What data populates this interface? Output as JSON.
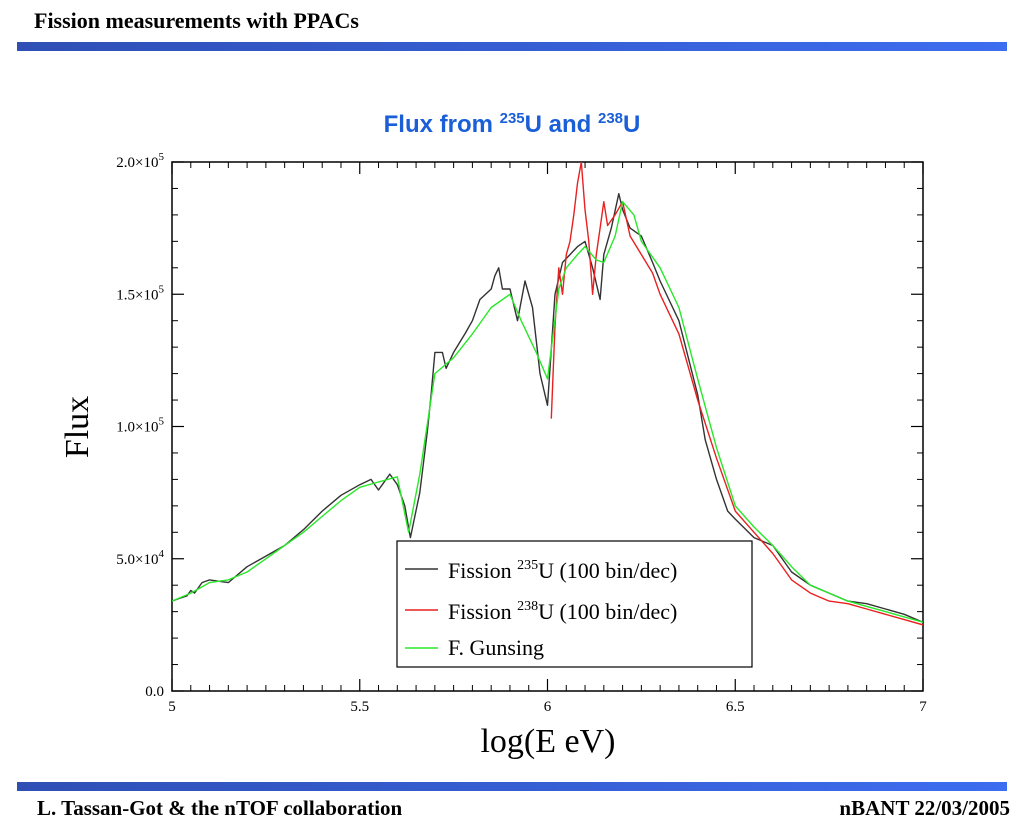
{
  "slide": {
    "title": "Fission measurements with PPACs",
    "footer_left": "L. Tassan-Got & the nTOF collaboration",
    "footer_right": "nBANT 22/03/2005",
    "accent_bar_color": "#3d6df0"
  },
  "chart_data": {
    "type": "line",
    "title_parts": [
      "Flux from ",
      "235",
      "U and ",
      "238",
      "U"
    ],
    "title_color": "#1a5fd8",
    "xlabel": "log(E eV)",
    "ylabel": "Flux",
    "xlim": [
      5,
      7
    ],
    "ylim": [
      0,
      200000
    ],
    "xticks": [
      5,
      5.5,
      6,
      6.5,
      7
    ],
    "xtick_labels": [
      "5",
      "5.5",
      "6",
      "6.5",
      "7"
    ],
    "yticks": [
      0,
      50000,
      100000,
      150000,
      200000
    ],
    "ytick_labels": [
      {
        "mant": "0.0",
        "exp": ""
      },
      {
        "mant": "5.0×10",
        "exp": "4"
      },
      {
        "mant": "1.0×10",
        "exp": "5"
      },
      {
        "mant": "1.5×10",
        "exp": "5"
      },
      {
        "mant": "2.0×10",
        "exp": "5"
      }
    ],
    "grid": false,
    "legend_position": "bottom-center",
    "series": [
      {
        "legend": {
          "prefix": "Fission ",
          "sup": "235",
          "suffix": "U (100 bin/dec)"
        },
        "color": "#333333",
        "x": [
          5.0,
          5.02,
          5.04,
          5.05,
          5.06,
          5.08,
          5.1,
          5.15,
          5.2,
          5.25,
          5.3,
          5.35,
          5.4,
          5.45,
          5.5,
          5.53,
          5.55,
          5.58,
          5.6,
          5.62,
          5.635,
          5.66,
          5.68,
          5.69,
          5.7,
          5.72,
          5.73,
          5.75,
          5.78,
          5.8,
          5.82,
          5.85,
          5.86,
          5.87,
          5.88,
          5.9,
          5.92,
          5.94,
          5.96,
          5.98,
          6.0,
          6.02,
          6.04,
          6.06,
          6.08,
          6.1,
          6.12,
          6.14,
          6.15,
          6.17,
          6.19,
          6.2,
          6.22,
          6.25,
          6.28,
          6.3,
          6.35,
          6.4,
          6.42,
          6.45,
          6.48,
          6.5,
          6.55,
          6.6,
          6.65,
          6.7,
          6.75,
          6.8,
          6.85,
          6.9,
          6.95,
          7.0
        ],
        "y": [
          34000,
          35000,
          36000,
          38000,
          37000,
          41000,
          42000,
          41000,
          47000,
          51000,
          55000,
          61000,
          68000,
          74000,
          78000,
          80000,
          76000,
          82000,
          78000,
          70000,
          58000,
          75000,
          98000,
          112000,
          128000,
          128000,
          122000,
          128000,
          135000,
          140000,
          148000,
          152000,
          157000,
          160000,
          152000,
          152000,
          140000,
          155000,
          145000,
          120000,
          108000,
          150000,
          162000,
          165000,
          168000,
          170000,
          160000,
          148000,
          165000,
          175000,
          188000,
          182000,
          175000,
          172000,
          162000,
          155000,
          140000,
          112000,
          95000,
          80000,
          68000,
          65000,
          58000,
          55000,
          45000,
          40000,
          37000,
          34000,
          33000,
          31000,
          29000,
          26000
        ]
      },
      {
        "legend": {
          "prefix": "Fission ",
          "sup": "238",
          "suffix": "U (100 bin/dec)"
        },
        "color": "#e82020",
        "x": [
          6.01,
          6.02,
          6.03,
          6.04,
          6.05,
          6.06,
          6.07,
          6.08,
          6.09,
          6.1,
          6.11,
          6.12,
          6.13,
          6.14,
          6.15,
          6.16,
          6.18,
          6.2,
          6.22,
          6.25,
          6.28,
          6.3,
          6.35,
          6.4,
          6.45,
          6.5,
          6.55,
          6.6,
          6.65,
          6.7,
          6.75,
          6.8,
          6.85,
          6.9,
          6.95,
          7.0
        ],
        "y": [
          103000,
          138000,
          160000,
          150000,
          165000,
          170000,
          180000,
          192000,
          200000,
          182000,
          170000,
          150000,
          165000,
          175000,
          185000,
          176000,
          180000,
          185000,
          172000,
          165000,
          158000,
          150000,
          135000,
          110000,
          88000,
          68000,
          60000,
          52000,
          42000,
          37000,
          34000,
          33000,
          31000,
          29000,
          27000,
          25000
        ]
      },
      {
        "legend": {
          "prefix": "F. Gunsing",
          "sup": "",
          "suffix": ""
        },
        "color": "#28e828",
        "x": [
          5.0,
          5.05,
          5.1,
          5.15,
          5.2,
          5.25,
          5.3,
          5.35,
          5.4,
          5.45,
          5.5,
          5.55,
          5.6,
          5.63,
          5.66,
          5.7,
          5.75,
          5.8,
          5.85,
          5.9,
          5.93,
          5.97,
          6.0,
          6.03,
          6.05,
          6.08,
          6.1,
          6.13,
          6.15,
          6.18,
          6.2,
          6.23,
          6.25,
          6.3,
          6.35,
          6.4,
          6.45,
          6.5,
          6.55,
          6.6,
          6.65,
          6.7,
          6.75,
          6.8,
          6.85,
          6.9,
          6.95,
          7.0
        ],
        "y": [
          34000,
          37000,
          41000,
          42000,
          45000,
          50000,
          55000,
          60000,
          66000,
          72000,
          77000,
          79000,
          81000,
          60000,
          82000,
          120000,
          126000,
          135000,
          145000,
          150000,
          140000,
          128000,
          118000,
          152000,
          160000,
          165000,
          168000,
          163000,
          162000,
          172000,
          185000,
          180000,
          170000,
          160000,
          145000,
          118000,
          92000,
          70000,
          62000,
          55000,
          47000,
          40000,
          37000,
          34000,
          32000,
          30000,
          28000,
          26000
        ]
      }
    ]
  }
}
